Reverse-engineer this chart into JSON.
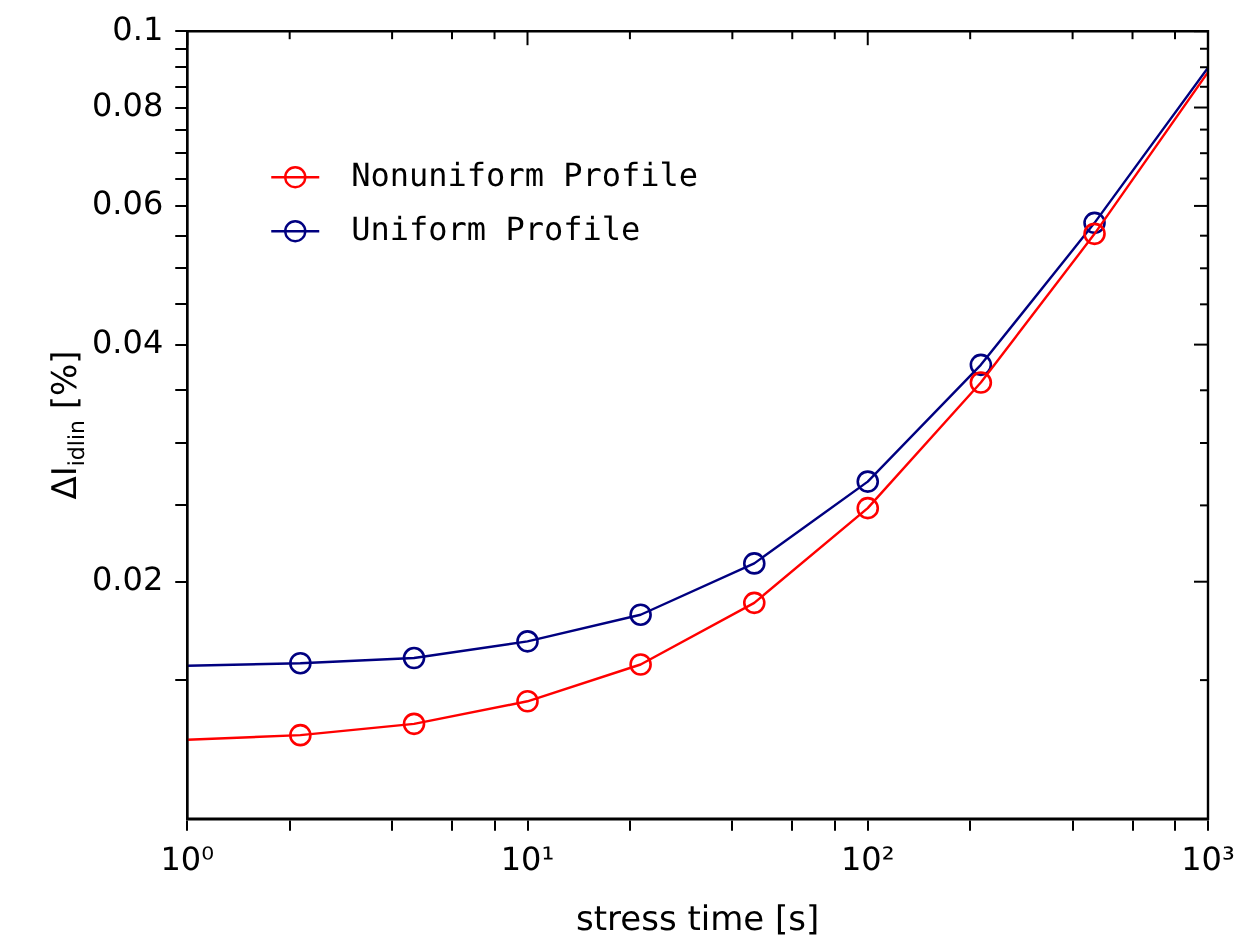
{
  "chart_data": {
    "type": "line",
    "xlabel": "stress time [s]",
    "ylabel": "ΔI$_{idlin}$ [%]",
    "log": "xy",
    "marker": "circle",
    "line_style": "solid",
    "grid": false,
    "legend": "top left",
    "x": [
      1,
      2.15,
      4.64,
      10,
      21.5,
      46.4,
      100,
      215,
      464,
      1000
    ],
    "xlim": [
      1,
      1000
    ],
    "xticks": [
      {
        "value": 1,
        "label": "10⁰"
      },
      {
        "value": 2,
        "label": null
      },
      {
        "value": 4,
        "label": null
      },
      {
        "value": 6,
        "label": null
      },
      {
        "value": 8,
        "label": null
      },
      {
        "value": 10,
        "label": "10¹"
      },
      {
        "value": 20,
        "label": null
      },
      {
        "value": 40,
        "label": null
      },
      {
        "value": 60,
        "label": null
      },
      {
        "value": 80,
        "label": null
      },
      {
        "value": 100,
        "label": "10²"
      },
      {
        "value": 200,
        "label": null
      },
      {
        "value": 400,
        "label": null
      },
      {
        "value": 600,
        "label": null
      },
      {
        "value": 800,
        "label": null
      },
      {
        "value": 1000,
        "label": "10³"
      }
    ],
    "ylim": [
      0.01,
      0.1
    ],
    "yticks": [
      {
        "value": 0.015,
        "label": null
      },
      0.02,
      {
        "value": 0.025,
        "label": null
      },
      {
        "value": 0.03,
        "label": null
      },
      {
        "value": 0.035,
        "label": null
      },
      0.04,
      {
        "value": 0.045,
        "label": null
      },
      {
        "value": 0.05,
        "label": null
      },
      {
        "value": 0.055,
        "label": null
      },
      0.06,
      {
        "value": 0.065,
        "label": null
      },
      {
        "value": 0.07,
        "label": null
      },
      {
        "value": 0.075,
        "label": null
      },
      0.08,
      {
        "value": 0.085,
        "label": null
      },
      {
        "value": 0.09,
        "label": null
      },
      {
        "value": 0.095,
        "label": null
      },
      0.1
    ],
    "series": [
      {
        "name": "Nonuniform Profile",
        "color": "#ff0000",
        "values": [
          0.0126,
          0.01277,
          0.0132,
          0.0141,
          0.0157,
          0.0188,
          0.0248,
          0.0358,
          0.0553,
          0.0887
        ]
      },
      {
        "name": "Uniform Profile",
        "color": "#000080",
        "values": [
          0.01564,
          0.01576,
          0.016,
          0.0168,
          0.01816,
          0.0211,
          0.0268,
          0.0377,
          0.0571,
          0.0899
        ]
      }
    ]
  }
}
